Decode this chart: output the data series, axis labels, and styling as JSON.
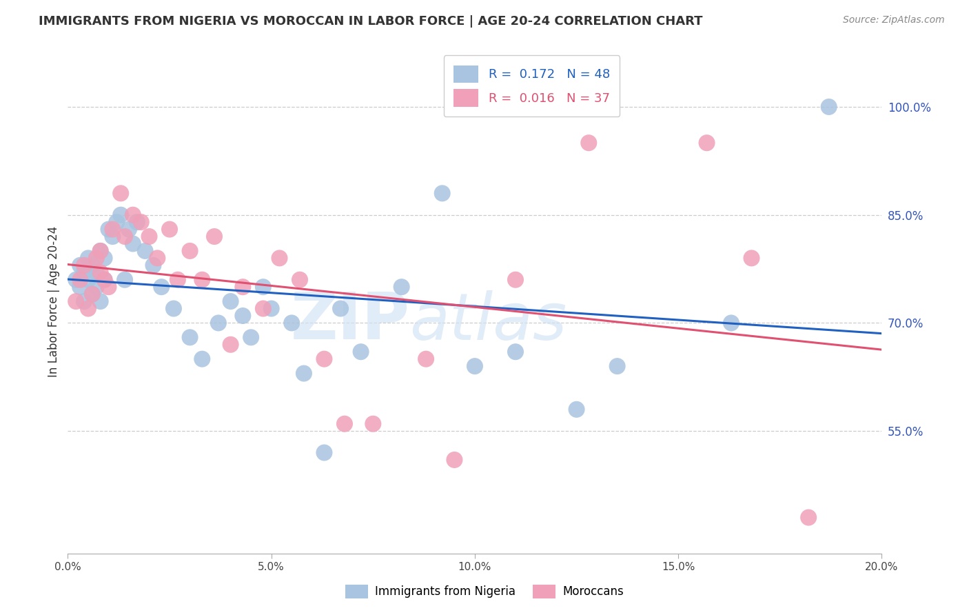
{
  "title": "IMMIGRANTS FROM NIGERIA VS MOROCCAN IN LABOR FORCE | AGE 20-24 CORRELATION CHART",
  "source": "Source: ZipAtlas.com",
  "ylabel": "In Labor Force | Age 20-24",
  "right_yticks": [
    1.0,
    0.85,
    0.7,
    0.55
  ],
  "right_ytick_labels": [
    "100.0%",
    "85.0%",
    "70.0%",
    "55.0%"
  ],
  "nigeria_R": 0.172,
  "nigeria_N": 48,
  "morocco_R": 0.016,
  "morocco_N": 37,
  "nigeria_color": "#a8c4e0",
  "morocco_color": "#f0a0b8",
  "nigeria_line_color": "#2060c0",
  "morocco_line_color": "#e05070",
  "xlim": [
    0.0,
    0.2
  ],
  "ylim": [
    0.38,
    1.08
  ],
  "x_ticks": [
    0.0,
    0.05,
    0.1,
    0.15,
    0.2
  ],
  "x_tick_labels": [
    "0.0%",
    "5.0%",
    "10.0%",
    "15.0%",
    "20.0%"
  ],
  "nigeria_x": [
    0.002,
    0.003,
    0.003,
    0.004,
    0.004,
    0.005,
    0.005,
    0.006,
    0.006,
    0.007,
    0.007,
    0.008,
    0.008,
    0.009,
    0.009,
    0.01,
    0.011,
    0.012,
    0.013,
    0.014,
    0.015,
    0.016,
    0.017,
    0.019,
    0.021,
    0.023,
    0.026,
    0.03,
    0.033,
    0.037,
    0.04,
    0.043,
    0.045,
    0.048,
    0.05,
    0.055,
    0.058,
    0.063,
    0.067,
    0.072,
    0.082,
    0.092,
    0.1,
    0.11,
    0.125,
    0.135,
    0.163,
    0.187
  ],
  "nigeria_y": [
    0.76,
    0.78,
    0.75,
    0.77,
    0.73,
    0.79,
    0.76,
    0.74,
    0.78,
    0.75,
    0.77,
    0.73,
    0.8,
    0.76,
    0.79,
    0.83,
    0.82,
    0.84,
    0.85,
    0.76,
    0.83,
    0.81,
    0.84,
    0.8,
    0.78,
    0.75,
    0.72,
    0.68,
    0.65,
    0.7,
    0.73,
    0.71,
    0.68,
    0.75,
    0.72,
    0.7,
    0.63,
    0.52,
    0.72,
    0.66,
    0.75,
    0.88,
    0.64,
    0.66,
    0.58,
    0.64,
    0.7,
    1.0
  ],
  "morocco_x": [
    0.002,
    0.003,
    0.004,
    0.005,
    0.006,
    0.007,
    0.008,
    0.008,
    0.009,
    0.01,
    0.011,
    0.013,
    0.014,
    0.016,
    0.018,
    0.02,
    0.022,
    0.025,
    0.027,
    0.03,
    0.033,
    0.036,
    0.04,
    0.043,
    0.048,
    0.052,
    0.057,
    0.063,
    0.068,
    0.075,
    0.088,
    0.095,
    0.11,
    0.128,
    0.157,
    0.168,
    0.182
  ],
  "morocco_y": [
    0.73,
    0.76,
    0.78,
    0.72,
    0.74,
    0.79,
    0.8,
    0.77,
    0.76,
    0.75,
    0.83,
    0.88,
    0.82,
    0.85,
    0.84,
    0.82,
    0.79,
    0.83,
    0.76,
    0.8,
    0.76,
    0.82,
    0.67,
    0.75,
    0.72,
    0.79,
    0.76,
    0.65,
    0.56,
    0.56,
    0.65,
    0.51,
    0.76,
    0.95,
    0.95,
    0.79,
    0.43
  ]
}
